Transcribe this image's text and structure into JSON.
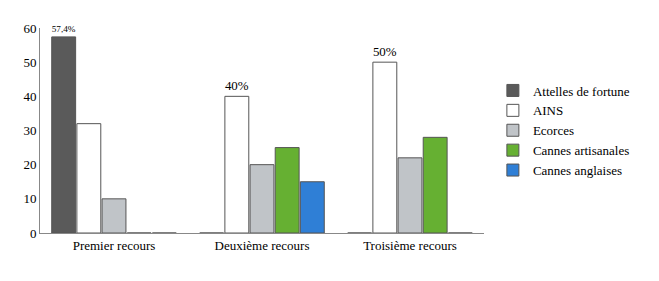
{
  "chart_data": {
    "type": "bar",
    "categories": [
      "Premier recours",
      "Deuxième recours",
      "Troisième recours"
    ],
    "series": [
      {
        "name": "Attelles de fortune",
        "color": "#5a5a5a",
        "values": [
          57.4,
          0,
          0
        ],
        "value_labels": [
          "57,4%",
          null,
          null
        ]
      },
      {
        "name": "AINS",
        "color": "#ffffff",
        "values": [
          32,
          40,
          50
        ],
        "value_labels": [
          null,
          "40%",
          "50%"
        ]
      },
      {
        "name": "Ecorces",
        "color": "#c0c4c8",
        "values": [
          10,
          20,
          22
        ]
      },
      {
        "name": "Cannes artisanales",
        "color": "#66b032",
        "values": [
          0,
          25,
          28
        ]
      },
      {
        "name": "Cannes anglaises",
        "color": "#2f7fd6",
        "values": [
          0,
          15,
          0
        ]
      }
    ],
    "ylim": [
      0,
      60
    ],
    "yticks": [
      0,
      10,
      20,
      30,
      40,
      50,
      60
    ],
    "grid": false,
    "legend": "right",
    "data_labels": true
  }
}
